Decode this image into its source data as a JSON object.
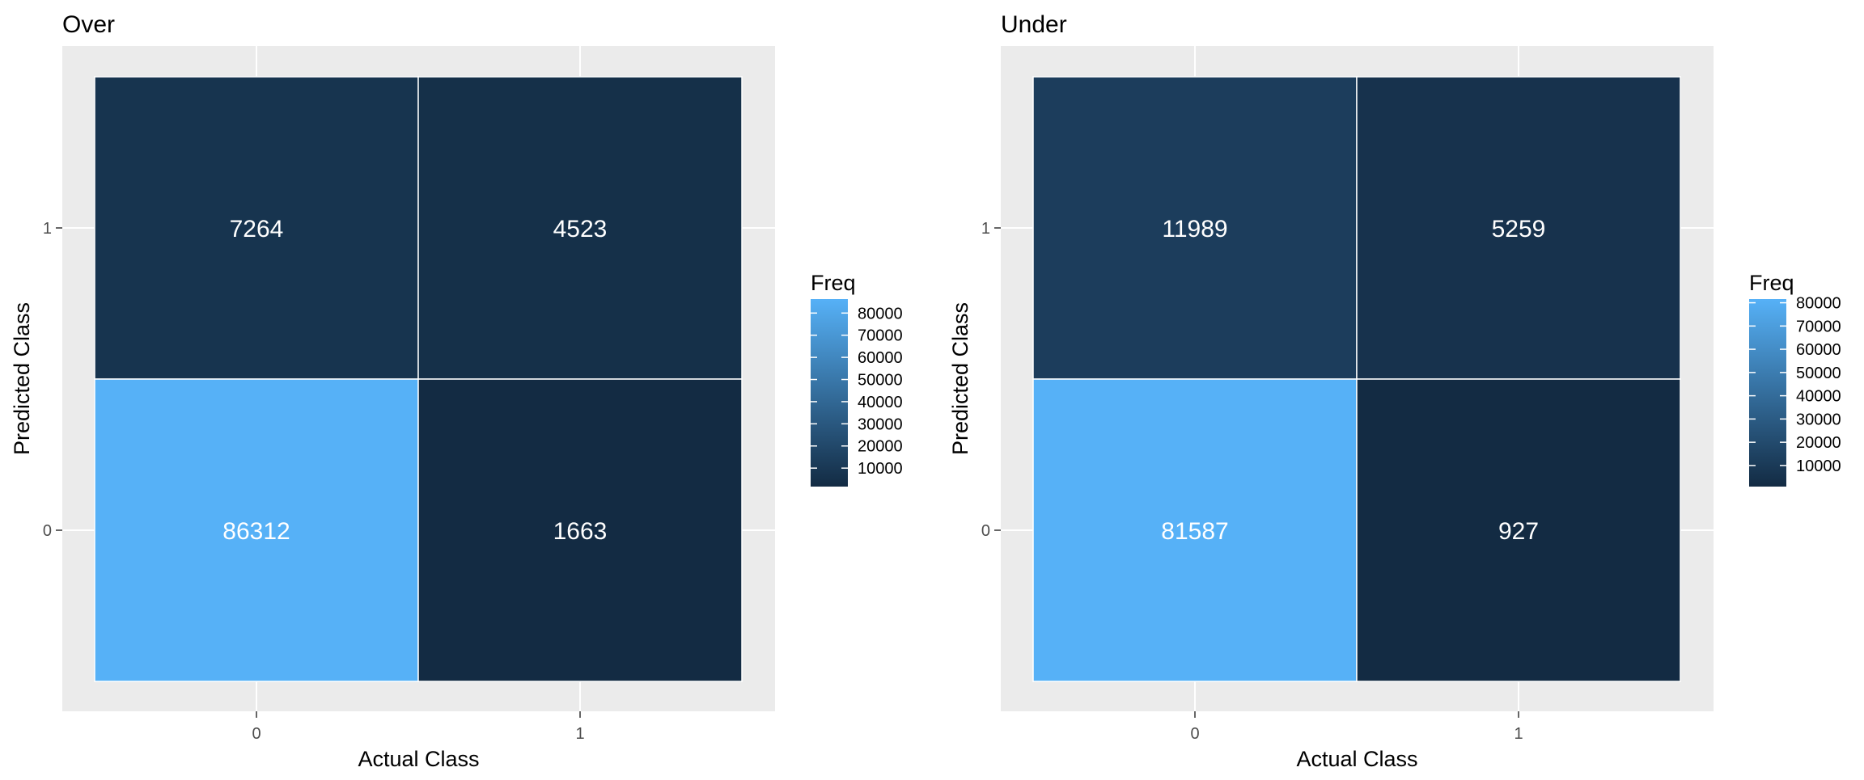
{
  "chart_data": [
    {
      "type": "heatmap",
      "title": "Over",
      "xlabel": "Actual Class",
      "ylabel": "Predicted Class",
      "x_categories": [
        "0",
        "1"
      ],
      "y_categories": [
        "0",
        "1"
      ],
      "cells": [
        {
          "actual": "0",
          "predicted": "1",
          "value": 7264
        },
        {
          "actual": "1",
          "predicted": "1",
          "value": 4523
        },
        {
          "actual": "0",
          "predicted": "0",
          "value": 86312
        },
        {
          "actual": "1",
          "predicted": "0",
          "value": 1663
        }
      ],
      "legend": {
        "title": "Freq",
        "ticks": [
          "80000",
          "70000",
          "60000",
          "50000",
          "40000",
          "30000",
          "20000",
          "10000"
        ],
        "placement": "right"
      },
      "color_low": "#132B43",
      "color_high": "#56B1F7",
      "grid": true
    },
    {
      "type": "heatmap",
      "title": "Under",
      "xlabel": "Actual Class",
      "ylabel": "Predicted Class",
      "x_categories": [
        "0",
        "1"
      ],
      "y_categories": [
        "0",
        "1"
      ],
      "cells": [
        {
          "actual": "0",
          "predicted": "1",
          "value": 11989
        },
        {
          "actual": "1",
          "predicted": "1",
          "value": 5259
        },
        {
          "actual": "0",
          "predicted": "0",
          "value": 81587
        },
        {
          "actual": "1",
          "predicted": "0",
          "value": 927
        }
      ],
      "legend": {
        "title": "Freq",
        "ticks": [
          "80000",
          "70000",
          "60000",
          "50000",
          "40000",
          "30000",
          "20000",
          "10000"
        ],
        "placement": "right"
      },
      "color_low": "#132B43",
      "color_high": "#56B1F7",
      "grid": true
    }
  ]
}
